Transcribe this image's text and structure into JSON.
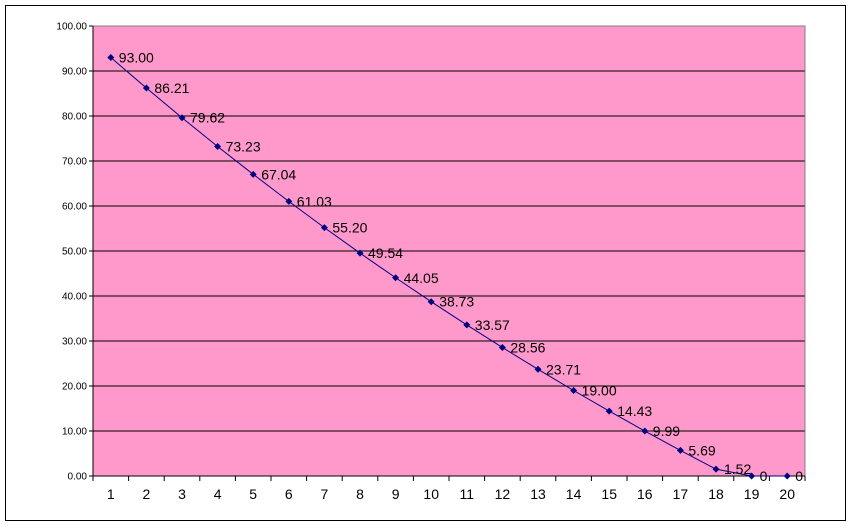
{
  "chart_data": {
    "type": "line",
    "title": "",
    "xlabel": "",
    "ylabel": "",
    "categories": [
      "1",
      "2",
      "3",
      "4",
      "5",
      "6",
      "7",
      "8",
      "9",
      "10",
      "11",
      "12",
      "13",
      "14",
      "15",
      "16",
      "17",
      "18",
      "19",
      "20"
    ],
    "series": [
      {
        "values": [
          93.0,
          86.21,
          79.62,
          73.23,
          67.04,
          61.03,
          55.2,
          49.54,
          44.05,
          38.73,
          33.57,
          28.56,
          23.71,
          19.0,
          14.43,
          9.99,
          5.69,
          1.52,
          0,
          0
        ],
        "data_labels": [
          "93.00",
          "86.21",
          "79.62",
          "73.23",
          "67.04",
          "61.03",
          "55.20",
          "49.54",
          "44.05",
          "38.73",
          "33.57",
          "28.56",
          "23.71",
          "19.00",
          "14.43",
          "9.99",
          "5.69",
          "1.52",
          "0",
          "0"
        ]
      }
    ],
    "yticks": [
      "0.00",
      "10.00",
      "20.00",
      "30.00",
      "40.00",
      "50.00",
      "60.00",
      "70.00",
      "80.00",
      "90.00",
      "100.00"
    ],
    "ylim": [
      0,
      100
    ],
    "grid": true,
    "plot_background": "#ff99cc",
    "line_color": "#000080",
    "marker_color": "#000080",
    "legend": "none"
  }
}
